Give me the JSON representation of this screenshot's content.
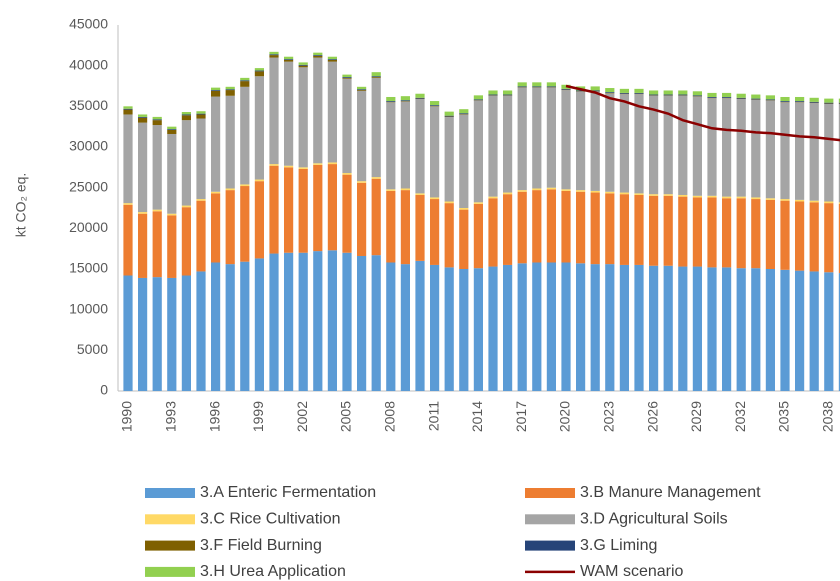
{
  "chart_data": {
    "type": "stacked_bar",
    "y_label": "kt CO₂ eq.",
    "categories": [
      "1990",
      null,
      null,
      "1993",
      null,
      null,
      "1996",
      null,
      null,
      "1999",
      null,
      null,
      "2002",
      null,
      null,
      "2005",
      null,
      null,
      "2008",
      null,
      null,
      "2011",
      null,
      null,
      "2014",
      null,
      null,
      "2017",
      null,
      null,
      "2020",
      null,
      null,
      "2023",
      null,
      null,
      "2026",
      null,
      null,
      "2029",
      null,
      null,
      "2032",
      null,
      null,
      "2035",
      null,
      null,
      "2038",
      null
    ],
    "series": [
      {
        "name": "3.A Enteric Fermentation",
        "color": "#5b9bd5",
        "values": [
          14200,
          13900,
          14000,
          13900,
          14200,
          14700,
          15800,
          15600,
          15900,
          16300,
          16900,
          17000,
          17000,
          17200,
          17300,
          17000,
          16600,
          16700,
          15800,
          15600,
          16000,
          15500,
          15200,
          15000,
          15100,
          15300,
          15500,
          15700,
          15800,
          15800,
          15800,
          15700,
          15600,
          15600,
          15500,
          15500,
          15400,
          15400,
          15300,
          15300,
          15200,
          15200,
          15100,
          15100,
          15000,
          14900,
          14800,
          14700,
          14600,
          14500
        ]
      },
      {
        "name": "3.B Manure Management",
        "color": "#ed7d31",
        "values": [
          8700,
          7900,
          8100,
          7700,
          8400,
          8700,
          8500,
          9100,
          9300,
          9500,
          10800,
          10500,
          10300,
          10600,
          10600,
          9600,
          9000,
          9400,
          8800,
          9100,
          8100,
          8100,
          7900,
          7300,
          7900,
          8400,
          8700,
          8800,
          8900,
          9000,
          8800,
          8800,
          8800,
          8700,
          8700,
          8600,
          8600,
          8600,
          8600,
          8500,
          8600,
          8500,
          8600,
          8500,
          8500,
          8500,
          8500,
          8500,
          8500,
          8500
        ]
      },
      {
        "name": "3.C Rice Cultivation",
        "color": "#ffd966",
        "values": [
          200,
          200,
          200,
          200,
          200,
          200,
          200,
          200,
          200,
          200,
          200,
          200,
          200,
          200,
          200,
          200,
          200,
          200,
          200,
          200,
          200,
          200,
          200,
          200,
          200,
          200,
          200,
          200,
          200,
          200,
          200,
          200,
          200,
          200,
          200,
          200,
          200,
          200,
          200,
          200,
          200,
          200,
          200,
          200,
          200,
          200,
          200,
          200,
          200,
          200
        ]
      },
      {
        "name": "3.D Agricultural Soils",
        "color": "#a5a5a5",
        "values": [
          10900,
          11000,
          10400,
          9800,
          10500,
          9900,
          11700,
          11400,
          12000,
          12700,
          13100,
          12800,
          12300,
          13000,
          12400,
          11600,
          11100,
          12200,
          10700,
          10700,
          11600,
          11200,
          10400,
          11500,
          12500,
          12400,
          11900,
          12600,
          12400,
          12300,
          12200,
          12100,
          12200,
          12100,
          12100,
          12200,
          12100,
          12100,
          12200,
          12200,
          12000,
          12100,
          12000,
          12000,
          12000,
          11900,
          12000,
          12000,
          12000,
          12100
        ]
      },
      {
        "name": "3.F Field Burning",
        "color": "#7f6000",
        "values": [
          600,
          600,
          600,
          500,
          600,
          500,
          700,
          700,
          700,
          600,
          300,
          200,
          200,
          200,
          200,
          100,
          100,
          100,
          50,
          50,
          50,
          50,
          50,
          50,
          50,
          50,
          50,
          50,
          50,
          50,
          50,
          50,
          50,
          50,
          50,
          50,
          50,
          50,
          50,
          50,
          50,
          50,
          50,
          50,
          50,
          50,
          50,
          50,
          50,
          50
        ]
      },
      {
        "name": "3.G Liming",
        "color": "#264478",
        "values": [
          100,
          100,
          100,
          100,
          100,
          100,
          100,
          100,
          100,
          100,
          100,
          100,
          100,
          100,
          100,
          100,
          100,
          100,
          100,
          100,
          100,
          100,
          100,
          100,
          100,
          100,
          100,
          100,
          100,
          100,
          100,
          100,
          100,
          100,
          100,
          100,
          100,
          100,
          100,
          100,
          100,
          100,
          100,
          100,
          100,
          100,
          100,
          100,
          100,
          100
        ]
      },
      {
        "name": "3.H Urea Application",
        "color": "#92d050",
        "values": [
          300,
          300,
          300,
          300,
          300,
          300,
          300,
          300,
          300,
          300,
          300,
          300,
          300,
          300,
          300,
          300,
          300,
          500,
          500,
          500,
          500,
          500,
          500,
          500,
          500,
          500,
          500,
          500,
          500,
          500,
          500,
          500,
          500,
          500,
          500,
          500,
          500,
          500,
          500,
          500,
          500,
          500,
          500,
          500,
          500,
          500,
          500,
          500,
          500,
          500
        ]
      },
      {
        "name": "WAM scenario",
        "color": "#8b0000",
        "type": "line",
        "values": [
          null,
          null,
          null,
          null,
          null,
          null,
          null,
          null,
          null,
          null,
          null,
          null,
          null,
          null,
          null,
          null,
          null,
          null,
          null,
          null,
          null,
          null,
          null,
          null,
          null,
          null,
          null,
          null,
          null,
          null,
          37500,
          37100,
          36700,
          36000,
          35600,
          35000,
          34600,
          34100,
          33300,
          32800,
          32300,
          32100,
          32000,
          31800,
          31700,
          31500,
          31300,
          31200,
          31000,
          30800
        ]
      }
    ],
    "ylim": [
      0,
      45000
    ],
    "yticks": [
      0,
      5000,
      10000,
      15000,
      20000,
      25000,
      30000,
      35000,
      40000,
      45000
    ],
    "grid": false,
    "legend": "bottom"
  }
}
